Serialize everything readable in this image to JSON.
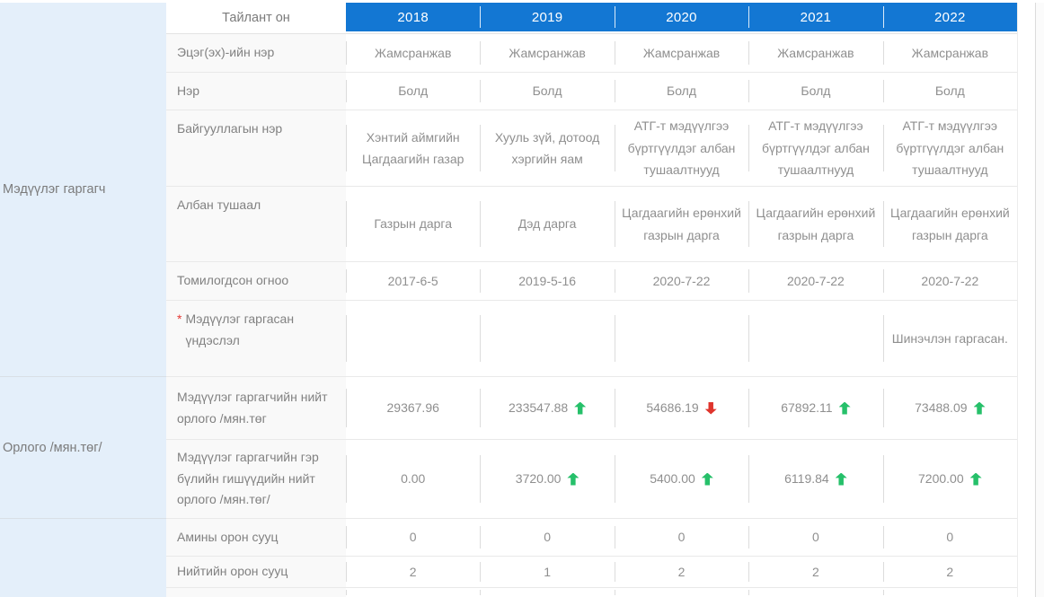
{
  "colors": {
    "header_bg": "#1377d3",
    "group_panel_bg": "#e4effa",
    "trend_up": "#26c06a",
    "trend_down": "#df342c",
    "required_mark": "#e53935"
  },
  "table": {
    "header": {
      "report_year_label": "Тайлант он",
      "years": [
        "2018",
        "2019",
        "2020",
        "2021",
        "2022"
      ]
    },
    "groups": [
      {
        "label": "Мэдүүлэг гаргагч"
      },
      {
        "label": "Орлого /мян.төг/"
      },
      {
        "label": ""
      }
    ],
    "rows": [
      {
        "label": "Эцэг(эх)-ийн нэр",
        "cells": [
          {
            "text": "Жамсранжав"
          },
          {
            "text": "Жамсранжав"
          },
          {
            "text": "Жамсранжав"
          },
          {
            "text": "Жамсранжав"
          },
          {
            "text": "Жамсранжав"
          }
        ]
      },
      {
        "label": "Нэр",
        "cells": [
          {
            "text": "Болд"
          },
          {
            "text": "Болд"
          },
          {
            "text": "Болд"
          },
          {
            "text": "Болд"
          },
          {
            "text": "Болд"
          }
        ]
      },
      {
        "label": "Байгууллагын нэр",
        "label_top": true,
        "cells": [
          {
            "text": "Хэнтий аймгийн Цагдаагийн газар"
          },
          {
            "text": "Хууль зүй, дотоод хэргийн яам"
          },
          {
            "text": "АТГ-т мэдүүлгээ бүртгүүлдэг албан тушаалтнууд"
          },
          {
            "text": "АТГ-т мэдүүлгээ бүртгүүлдэг албан тушаалтнууд"
          },
          {
            "text": "АТГ-т мэдүүлгээ бүртгүүлдэг албан тушаалтнууд"
          }
        ]
      },
      {
        "label": "Албан тушаал",
        "label_top": true,
        "cells": [
          {
            "text": "Газрын дарга"
          },
          {
            "text": "Дэд дарга"
          },
          {
            "text": "Цагдаагийн ерөнхий газрын дарга"
          },
          {
            "text": "Цагдаагийн ерөнхий газрын дарга"
          },
          {
            "text": "Цагдаагийн ерөнхий газрын дарга"
          }
        ]
      },
      {
        "label": "Томилогдсон огноо",
        "cells": [
          {
            "text": "2017-6-5"
          },
          {
            "text": "2019-5-16"
          },
          {
            "text": "2020-7-22"
          },
          {
            "text": "2020-7-22"
          },
          {
            "text": "2020-7-22"
          }
        ]
      },
      {
        "label": "Мэдүүлэг гаргасан үндэслэл",
        "required": true,
        "label_top": true,
        "cells": [
          {
            "text": ""
          },
          {
            "text": ""
          },
          {
            "text": ""
          },
          {
            "text": ""
          },
          {
            "text": "Шинэчлэн гаргасан."
          }
        ]
      },
      {
        "label": "Мэдүүлэг гаргагчийн нийт орлого /мян.төг",
        "cells": [
          {
            "text": "29367.96"
          },
          {
            "text": "233547.88",
            "trend": "up"
          },
          {
            "text": "54686.19",
            "trend": "down"
          },
          {
            "text": "67892.11",
            "trend": "up"
          },
          {
            "text": "73488.09",
            "trend": "up"
          }
        ]
      },
      {
        "label": "Мэдүүлэг гаргагчийн гэр бүлийн гишүүдийн нийт орлого /мян.төг/",
        "cells": [
          {
            "text": "0.00"
          },
          {
            "text": "3720.00",
            "trend": "up"
          },
          {
            "text": "5400.00",
            "trend": "up"
          },
          {
            "text": "6119.84",
            "trend": "up"
          },
          {
            "text": "7200.00",
            "trend": "up"
          }
        ]
      },
      {
        "label": "Амины орон сууц",
        "cells": [
          {
            "text": "0"
          },
          {
            "text": "0"
          },
          {
            "text": "0"
          },
          {
            "text": "0"
          },
          {
            "text": "0"
          }
        ]
      },
      {
        "label": "Нийтийн орон сууц",
        "cells": [
          {
            "text": "2"
          },
          {
            "text": "1"
          },
          {
            "text": "2"
          },
          {
            "text": "2"
          },
          {
            "text": "2"
          }
        ]
      },
      {
        "label": "",
        "partial": true,
        "cells": [
          {
            "text": ""
          },
          {
            "text": ""
          },
          {
            "text": ""
          },
          {
            "text": ""
          },
          {
            "text": ""
          }
        ]
      }
    ]
  }
}
